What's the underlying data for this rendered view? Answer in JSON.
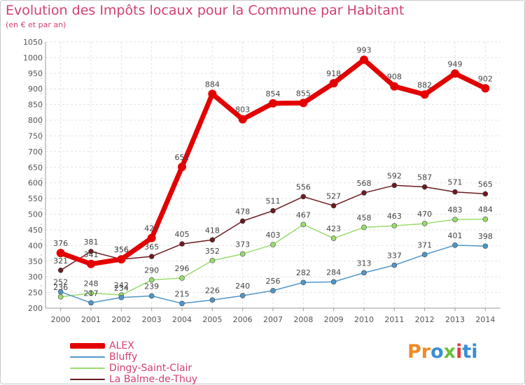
{
  "chart_data": {
    "type": "line",
    "title": "Evolution des Impôts locaux pour la Commune par Habitant",
    "subtitle": "(en € et par an)",
    "x": [
      "2000",
      "2001",
      "2002",
      "2003",
      "2004",
      "2005",
      "2006",
      "2007",
      "2008",
      "2009",
      "2010",
      "2011",
      "2012",
      "2013",
      "2014"
    ],
    "ylim": [
      200,
      1050
    ],
    "yticks": [
      200,
      250,
      300,
      350,
      400,
      450,
      500,
      550,
      600,
      650,
      700,
      750,
      800,
      850,
      900,
      950,
      1000,
      1050
    ],
    "grid": true,
    "legend_position": "bottom-left",
    "series": [
      {
        "name": "ALEX",
        "color": "#e30000",
        "values": [
          376,
          341,
          356,
          424,
          651,
          884,
          803,
          854,
          855,
          918,
          993,
          908,
          882,
          949,
          902
        ]
      },
      {
        "name": "Bluffy",
        "color": "#4f96c9",
        "values": [
          252,
          217,
          234,
          239,
          215,
          226,
          240,
          256,
          282,
          284,
          313,
          337,
          371,
          401,
          398
        ]
      },
      {
        "name": "Dingy-Saint-Clair",
        "color": "#99dd6e",
        "values": [
          236,
          248,
          242,
          290,
          296,
          352,
          373,
          403,
          467,
          423,
          458,
          463,
          470,
          483,
          484
        ]
      },
      {
        "name": "La Balme-de-Thuy",
        "color": "#6b1a1f",
        "values": [
          321,
          381,
          356,
          365,
          405,
          418,
          478,
          511,
          556,
          527,
          568,
          592,
          587,
          571,
          565
        ]
      }
    ]
  },
  "logo": {
    "p1": "Pr",
    "p2": "o",
    "p3": "x",
    "p4": "i",
    "p5": "ti"
  }
}
